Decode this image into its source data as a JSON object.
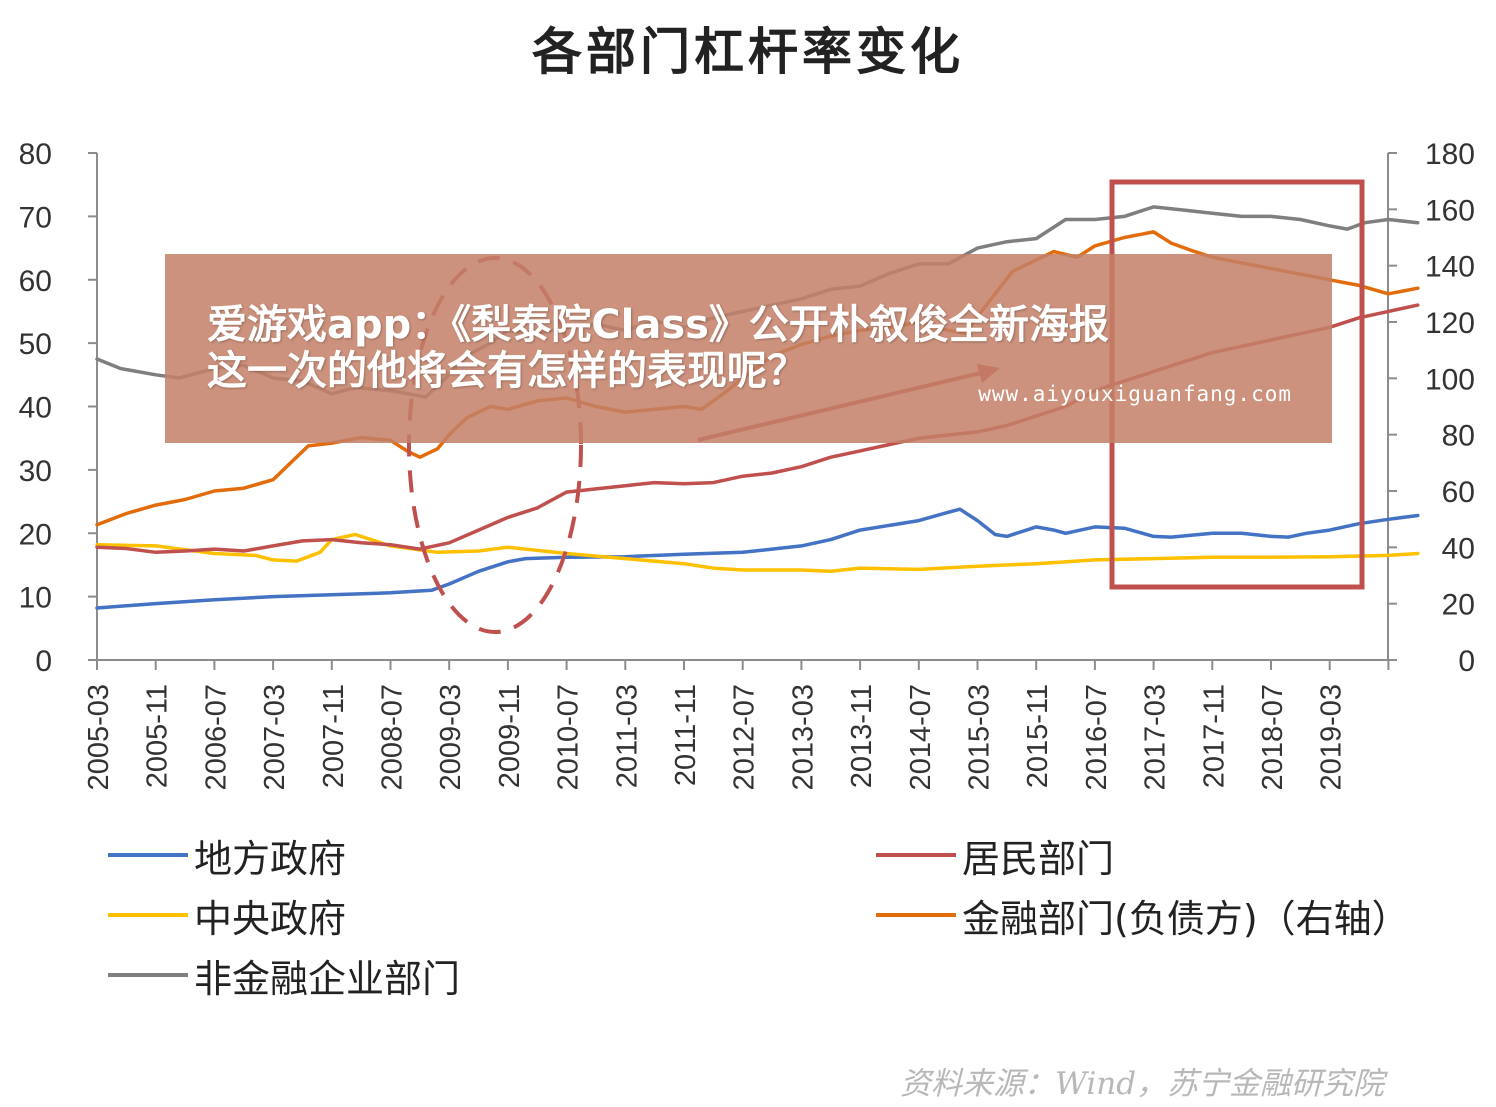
{
  "chart_data": {
    "type": "line",
    "title": "各部门杠杆率变化",
    "x_ticks": [
      "2005-03",
      "2005-11",
      "2006-07",
      "2007-03",
      "2007-11",
      "2008-07",
      "2009-03",
      "2009-11",
      "2010-07",
      "2011-03",
      "2011-11",
      "2012-07",
      "2013-03",
      "2013-11",
      "2014-07",
      "2015-03",
      "2015-11",
      "2016-07",
      "2017-03",
      "2017-11",
      "2018-07",
      "2019-03"
    ],
    "x_range": [
      0,
      22
    ],
    "y_left": {
      "ticks": [
        "0",
        "10",
        "20",
        "30",
        "40",
        "50",
        "60",
        "70",
        "80"
      ],
      "range": [
        0,
        80
      ]
    },
    "y_right": {
      "ticks": [
        "0",
        "20",
        "40",
        "60",
        "80",
        "100",
        "120",
        "140",
        "160",
        "180"
      ],
      "range": [
        0,
        180
      ]
    },
    "series": [
      {
        "name": "地方政府",
        "axis": "left",
        "color": "#4472c4",
        "points": [
          [
            0,
            8.2
          ],
          [
            1,
            8.9
          ],
          [
            2,
            9.5
          ],
          [
            3,
            10
          ],
          [
            4,
            10.3
          ],
          [
            5,
            10.6
          ],
          [
            5.7,
            11
          ],
          [
            6,
            12
          ],
          [
            6.5,
            14
          ],
          [
            7,
            15.5
          ],
          [
            7.3,
            16
          ],
          [
            8,
            16.2
          ],
          [
            9,
            16.3
          ],
          [
            10,
            16.7
          ],
          [
            11,
            17
          ],
          [
            11.5,
            17.5
          ],
          [
            12,
            18
          ],
          [
            12.5,
            19
          ],
          [
            13,
            20.5
          ],
          [
            14,
            22
          ],
          [
            14.5,
            23.3
          ],
          [
            14.7,
            23.8
          ],
          [
            15,
            22
          ],
          [
            15.3,
            19.8
          ],
          [
            15.5,
            19.5
          ],
          [
            16,
            21
          ],
          [
            16.3,
            20.5
          ],
          [
            16.5,
            20
          ],
          [
            17,
            21
          ],
          [
            17.5,
            20.8
          ],
          [
            18,
            19.5
          ],
          [
            18.3,
            19.4
          ],
          [
            19,
            20
          ],
          [
            19.5,
            20
          ],
          [
            20,
            19.5
          ],
          [
            20.3,
            19.4
          ],
          [
            20.6,
            20
          ],
          [
            21,
            20.5
          ],
          [
            21.5,
            21.5
          ],
          [
            22,
            22.2
          ],
          [
            22.5,
            22.8
          ]
        ]
      },
      {
        "name": "中央政府",
        "axis": "left",
        "color": "#ffc000",
        "points": [
          [
            0,
            18.2
          ],
          [
            1,
            18
          ],
          [
            2,
            16.8
          ],
          [
            2.7,
            16.5
          ],
          [
            3,
            15.8
          ],
          [
            3.4,
            15.6
          ],
          [
            3.8,
            17
          ],
          [
            4,
            19
          ],
          [
            4.4,
            19.8
          ],
          [
            5,
            18
          ],
          [
            5.8,
            17
          ],
          [
            6.5,
            17.2
          ],
          [
            7,
            17.8
          ],
          [
            8,
            16.8
          ],
          [
            9,
            16
          ],
          [
            10,
            15.2
          ],
          [
            10.5,
            14.5
          ],
          [
            11,
            14.2
          ],
          [
            12,
            14.2
          ],
          [
            12.5,
            14
          ],
          [
            13,
            14.5
          ],
          [
            14,
            14.3
          ],
          [
            15,
            14.8
          ],
          [
            16,
            15.2
          ],
          [
            17,
            15.8
          ],
          [
            18,
            16
          ],
          [
            19,
            16.2
          ],
          [
            20,
            16.2
          ],
          [
            21,
            16.3
          ],
          [
            22,
            16.5
          ],
          [
            22.5,
            16.8
          ]
        ]
      },
      {
        "name": "非金融企业部门",
        "axis": "left",
        "color": "#7f7f7f",
        "points": [
          [
            0,
            47.5
          ],
          [
            0.4,
            46
          ],
          [
            1,
            45
          ],
          [
            1.4,
            44.5
          ],
          [
            2,
            46
          ],
          [
            2.5,
            46.5
          ],
          [
            3,
            44.5
          ],
          [
            3.5,
            44
          ],
          [
            4,
            42
          ],
          [
            4.4,
            43
          ],
          [
            5,
            42.5
          ],
          [
            5.6,
            41.5
          ],
          [
            6,
            45
          ],
          [
            6.3,
            48
          ],
          [
            6.7,
            50
          ],
          [
            7,
            52
          ],
          [
            7.5,
            51.5
          ],
          [
            8,
            52.5
          ],
          [
            8.5,
            53
          ],
          [
            9,
            52
          ],
          [
            9.5,
            53.5
          ],
          [
            10,
            52.5
          ],
          [
            10.5,
            54
          ],
          [
            11,
            55
          ],
          [
            12,
            57
          ],
          [
            12.5,
            58.5
          ],
          [
            13,
            59
          ],
          [
            13.5,
            61
          ],
          [
            14,
            62.5
          ],
          [
            14.5,
            62.5
          ],
          [
            15,
            65
          ],
          [
            15.5,
            66
          ],
          [
            16,
            66.5
          ],
          [
            16.5,
            69.5
          ],
          [
            17,
            69.5
          ],
          [
            17.5,
            70
          ],
          [
            18,
            71.5
          ],
          [
            18.5,
            71
          ],
          [
            19,
            70.5
          ],
          [
            19.5,
            70
          ],
          [
            20,
            70
          ],
          [
            20.5,
            69.5
          ],
          [
            21,
            68.5
          ],
          [
            21.3,
            68
          ],
          [
            21.6,
            69
          ],
          [
            22,
            69.5
          ],
          [
            22.5,
            69
          ]
        ]
      },
      {
        "name": "居民部门",
        "axis": "left",
        "color": "#c0504d",
        "points": [
          [
            0,
            17.8
          ],
          [
            0.5,
            17.6
          ],
          [
            1,
            17
          ],
          [
            1.5,
            17.2
          ],
          [
            2,
            17.5
          ],
          [
            2.5,
            17.2
          ],
          [
            3,
            18
          ],
          [
            3.5,
            18.8
          ],
          [
            4,
            19
          ],
          [
            4.5,
            18.5
          ],
          [
            5,
            18.2
          ],
          [
            5.5,
            17.5
          ],
          [
            6,
            18.5
          ],
          [
            6.5,
            20.5
          ],
          [
            7,
            22.5
          ],
          [
            7.5,
            24
          ],
          [
            8,
            26.5
          ],
          [
            8.5,
            27
          ],
          [
            9,
            27.5
          ],
          [
            9.5,
            28
          ],
          [
            10,
            27.8
          ],
          [
            10.5,
            28
          ],
          [
            11,
            29
          ],
          [
            11.5,
            29.5
          ],
          [
            12,
            30.5
          ],
          [
            12.5,
            32
          ],
          [
            13,
            33
          ],
          [
            13.5,
            34
          ],
          [
            14,
            35
          ],
          [
            14.5,
            35.5
          ],
          [
            15,
            36
          ],
          [
            15.5,
            37
          ],
          [
            16,
            38.5
          ],
          [
            16.5,
            40
          ],
          [
            17,
            42.5
          ],
          [
            17.5,
            44
          ],
          [
            18,
            45.5
          ],
          [
            18.5,
            47
          ],
          [
            19,
            48.5
          ],
          [
            19.5,
            49.5
          ],
          [
            20,
            50.5
          ],
          [
            20.5,
            51.5
          ],
          [
            21,
            52.5
          ],
          [
            21.5,
            54
          ],
          [
            22,
            55
          ],
          [
            22.5,
            56
          ]
        ]
      },
      {
        "name": "金融部门(负债方)（右轴）",
        "axis": "right",
        "color": "#e36c0a",
        "points": [
          [
            0,
            48
          ],
          [
            0.5,
            52
          ],
          [
            1,
            55
          ],
          [
            1.5,
            57
          ],
          [
            2,
            60
          ],
          [
            2.5,
            61
          ],
          [
            3,
            64
          ],
          [
            3.3,
            70
          ],
          [
            3.6,
            76
          ],
          [
            4,
            77
          ],
          [
            4.5,
            79
          ],
          [
            5,
            78
          ],
          [
            5.3,
            74
          ],
          [
            5.5,
            72
          ],
          [
            5.8,
            75
          ],
          [
            6,
            80
          ],
          [
            6.3,
            86
          ],
          [
            6.7,
            90
          ],
          [
            7,
            89
          ],
          [
            7.5,
            92
          ],
          [
            8,
            93
          ],
          [
            8.5,
            90
          ],
          [
            9,
            88
          ],
          [
            9.5,
            89
          ],
          [
            10,
            90
          ],
          [
            10.3,
            89
          ],
          [
            10.7,
            95
          ],
          [
            11,
            100
          ],
          [
            11.5,
            108
          ],
          [
            12,
            112
          ],
          [
            12.5,
            115
          ],
          [
            13,
            117
          ],
          [
            13.5,
            118
          ],
          [
            14,
            120
          ],
          [
            14.5,
            117
          ],
          [
            14.8,
            116
          ],
          [
            15,
            122
          ],
          [
            15.3,
            130
          ],
          [
            15.6,
            138
          ],
          [
            16,
            142
          ],
          [
            16.3,
            145
          ],
          [
            16.7,
            143
          ],
          [
            17,
            147
          ],
          [
            17.5,
            150
          ],
          [
            18,
            152
          ],
          [
            18.3,
            148
          ],
          [
            18.7,
            145
          ],
          [
            19,
            143
          ],
          [
            19.5,
            141
          ],
          [
            20,
            139
          ],
          [
            20.5,
            137
          ],
          [
            21,
            135
          ],
          [
            21.5,
            133
          ],
          [
            22,
            130
          ],
          [
            22.5,
            132
          ]
        ]
      }
    ],
    "legend_position": "bottom",
    "annotations": [
      "red rectangle highlighting 2016-11 to 2019-12",
      "red dashed ellipse around 2008-07 to 2010-07",
      "red arrow rising from 2011 to 2016"
    ]
  },
  "legend": [
    {
      "label": "地方政府",
      "color": "#4472c4"
    },
    {
      "label": "中央政府",
      "color": "#ffc000"
    },
    {
      "label": "非金融企业部门",
      "color": "#7f7f7f"
    },
    {
      "label": "居民部门",
      "color": "#c0504d"
    },
    {
      "label": "金融部门(负债方)（右轴）",
      "color": "#e36c0a"
    }
  ],
  "source": "资料来源：Wind，苏宁金融研究院",
  "overlay": {
    "line1": "爱游戏app：《梨泰院Class》公开朴叙俊全新海报",
    "line2": "这一次的他将会有怎样的表现呢？",
    "url": "www.aiyouxiguanfang.com"
  }
}
